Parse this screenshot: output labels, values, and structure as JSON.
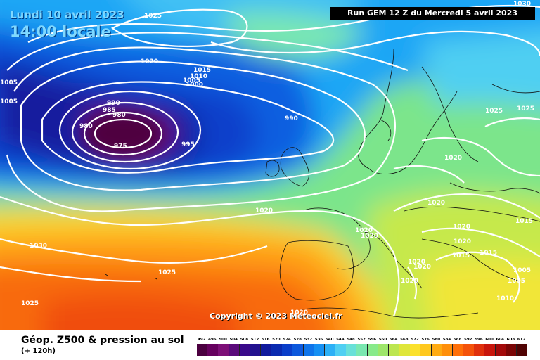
{
  "header": {
    "date": "Lundi 10 avril 2023",
    "time": "14:00 locale",
    "run": "Run GEM 12 Z du Mercredi 5 avril 2023"
  },
  "copyright": "Copyright © 2023 Meteociel.fr",
  "legend": {
    "title": "Géop. Z500 & pression au sol",
    "subtitle": "(+ 120h)",
    "ticks": [
      "492",
      "496",
      "500",
      "504",
      "508",
      "512",
      "516",
      "520",
      "524",
      "528",
      "532",
      "536",
      "540",
      "544",
      "548",
      "552",
      "556",
      "560",
      "564",
      "568",
      "572",
      "576",
      "580",
      "584",
      "588",
      "592",
      "596",
      "600",
      "604",
      "608",
      "612"
    ],
    "colors": [
      "#4b0040",
      "#66005e",
      "#7d0f77",
      "#5a0a7a",
      "#3a0a8a",
      "#22118f",
      "#101a9c",
      "#0a2ab0",
      "#0a3ec9",
      "#0c58dc",
      "#0f74ea",
      "#1590f3",
      "#2cb0f6",
      "#4fcff2",
      "#68e0d8",
      "#7ae8b0",
      "#88ea8a",
      "#9ee66a",
      "#bce650",
      "#dfe63a",
      "#fbe12c",
      "#ffc81e",
      "#ffab12",
      "#ff8f0a",
      "#ff6f08",
      "#f4520a",
      "#e0300c",
      "#c8160c",
      "#a30a0a",
      "#7a0606",
      "#500404"
    ]
  },
  "isobars": [
    "1030",
    "1025",
    "1020",
    "1015",
    "1010",
    "1005",
    "1000",
    "990",
    "985",
    "980",
    "975",
    "995",
    "990",
    "1005",
    "1005",
    "1020",
    "1025",
    "1025",
    "1030",
    "1025",
    "1020",
    "1020",
    "1020",
    "1020",
    "1020",
    "1020",
    "1020",
    "1020",
    "1020",
    "1015",
    "1015",
    "1015",
    "1005",
    "1005",
    "1010",
    "1020",
    "1025",
    "1025"
  ]
}
